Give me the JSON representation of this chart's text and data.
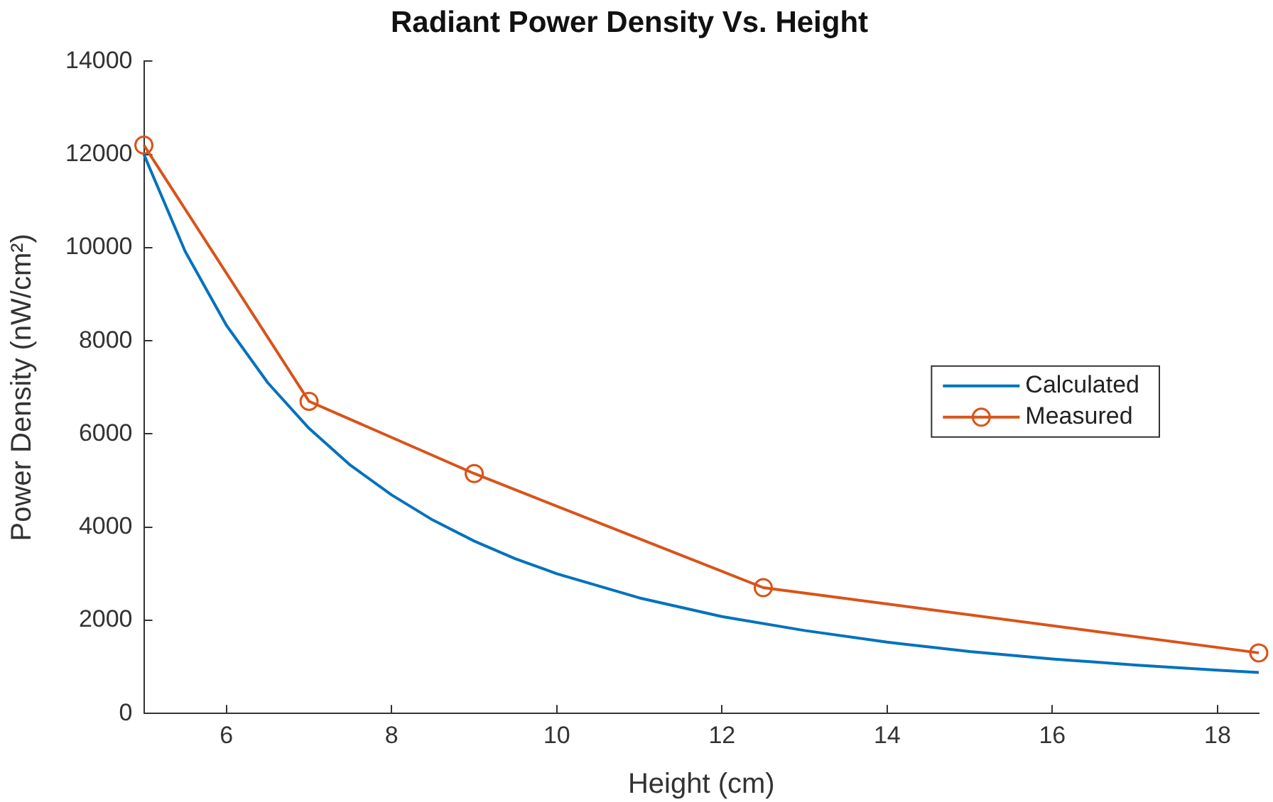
{
  "chart_data": {
    "type": "line",
    "title": "Radiant Power Density Vs. Height",
    "xlabel": "Height (cm)",
    "ylabel": "Power Density (nW/cm²)",
    "xlim": [
      5,
      18.5
    ],
    "xticks": [
      6,
      8,
      10,
      12,
      14,
      16,
      18
    ],
    "ylim": [
      0,
      14000
    ],
    "yticks": [
      0,
      2000,
      4000,
      6000,
      8000,
      10000,
      12000,
      14000
    ],
    "grid": false,
    "legend": "right",
    "series": [
      {
        "name": "Calculated",
        "color": "#0072bd",
        "marker": "none",
        "x": [
          5,
          5.5,
          6,
          6.5,
          7,
          7.5,
          8,
          8.5,
          9,
          9.5,
          10,
          11,
          12,
          13,
          14,
          15,
          16,
          17,
          18,
          18.5
        ],
        "values": [
          12000,
          9920,
          8330,
          7100,
          6120,
          5330,
          4690,
          4150,
          3700,
          3320,
          3000,
          2480,
          2080,
          1780,
          1530,
          1330,
          1170,
          1040,
          930,
          880
        ]
      },
      {
        "name": "Measured",
        "color": "#d95319",
        "marker": "circle",
        "x": [
          5,
          7,
          9,
          12.5,
          18.5
        ],
        "values": [
          12200,
          6700,
          5150,
          2700,
          1300
        ]
      }
    ]
  }
}
